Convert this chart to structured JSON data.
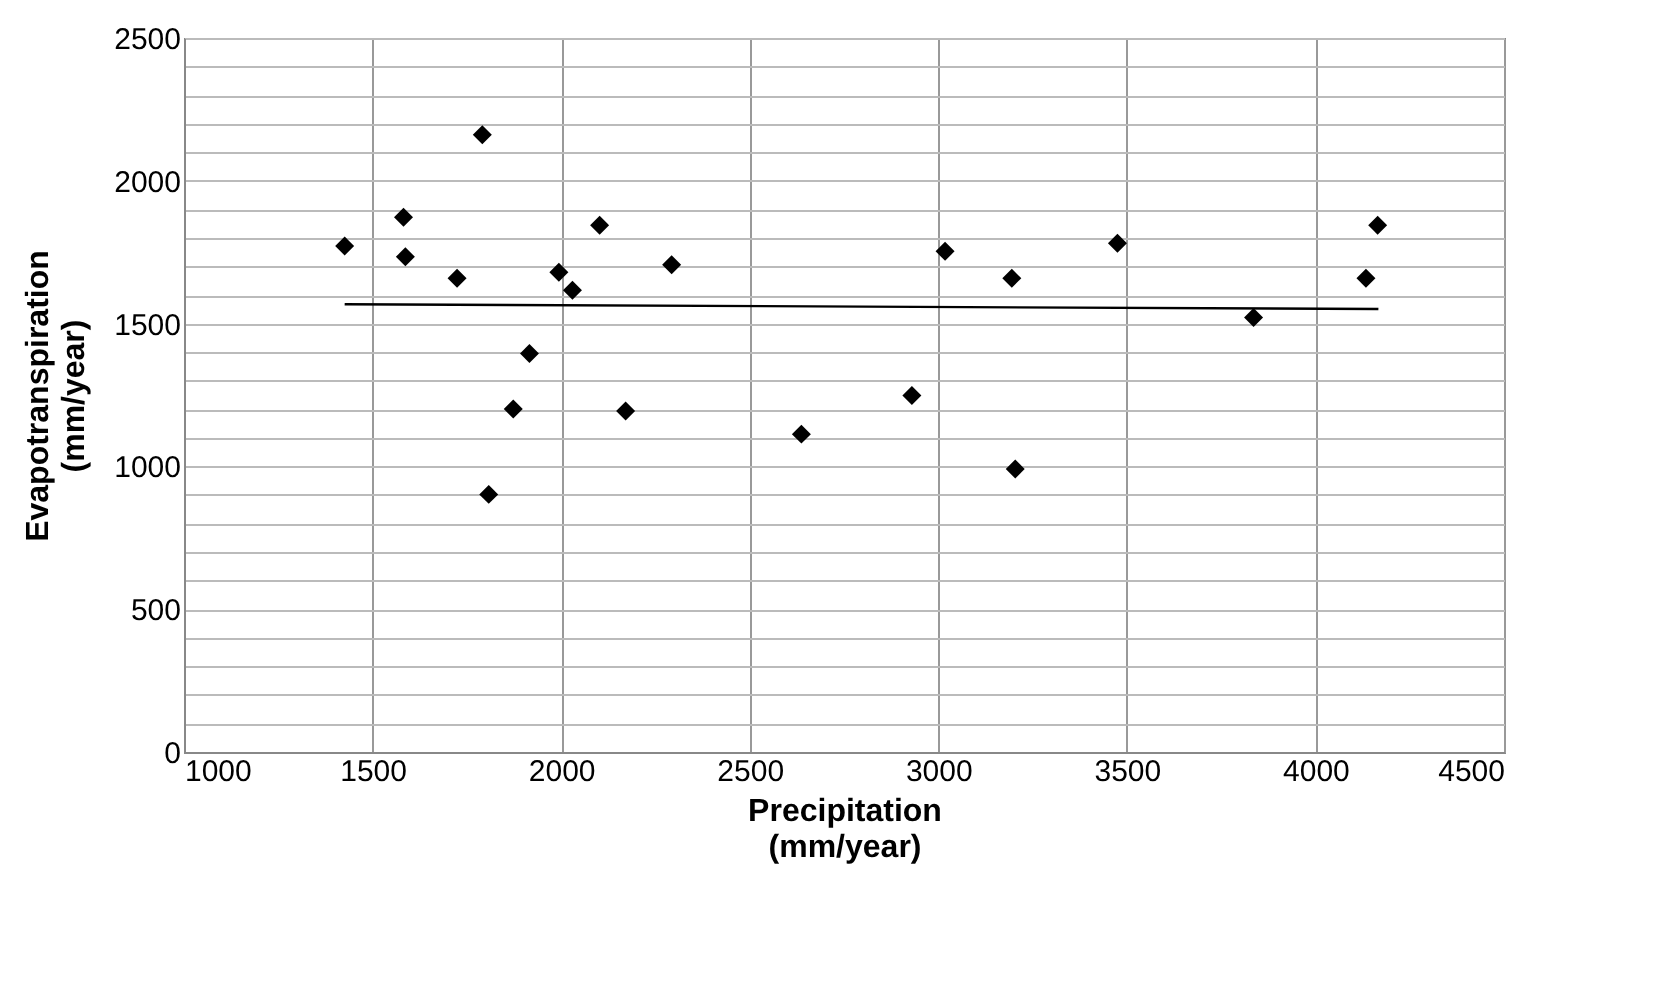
{
  "chart_data": {
    "type": "scatter",
    "xlabel": "Precipitation\n(mm/year)",
    "ylabel": "Evapotranspiration\n(mm/year)",
    "xlim": [
      1000,
      4500
    ],
    "xticks": [
      1000,
      1500,
      2000,
      2500,
      3000,
      3500,
      4000,
      4500
    ],
    "ylim": [
      0,
      2500
    ],
    "yticks": [
      0,
      {
        "value": 100,
        "label": null
      },
      {
        "value": 200,
        "label": null
      },
      {
        "value": 300,
        "label": null
      },
      {
        "value": 400,
        "label": null
      },
      500,
      {
        "value": 600,
        "label": null
      },
      {
        "value": 700,
        "label": null
      },
      {
        "value": 800,
        "label": null
      },
      {
        "value": 900,
        "label": null
      },
      1000,
      {
        "value": 1100,
        "label": null
      },
      {
        "value": 1200,
        "label": null
      },
      {
        "value": 1300,
        "label": null
      },
      {
        "value": 1400,
        "label": null
      },
      1500,
      {
        "value": 1600,
        "label": null
      },
      {
        "value": 1700,
        "label": null
      },
      {
        "value": 1800,
        "label": null
      },
      {
        "value": 1900,
        "label": null
      },
      2000,
      {
        "value": 2100,
        "label": null
      },
      {
        "value": 2200,
        "label": null
      },
      {
        "value": 2300,
        "label": null
      },
      {
        "value": 2400,
        "label": null
      },
      2500
    ],
    "grid": true,
    "legend": false,
    "series": [
      {
        "color": "#000000",
        "marker": "diamond",
        "x": [
          1426,
          1582,
          1587,
          1791,
          1724,
          1994,
          2030,
          2102,
          2293,
          1916,
          1873,
          2171,
          2637,
          1808,
          3018,
          3195,
          3475,
          3836,
          4134,
          4165,
          2930,
          3204
        ],
        "values": [
          1772,
          1872,
          1734,
          2161,
          1659,
          1680,
          1617,
          1844,
          1706,
          1395,
          1201,
          1194,
          1113,
          902,
          1753,
          1659,
          1781,
          1521,
          1659,
          1844,
          1248,
          991
        ]
      },
      {
        "type": "line",
        "color": "#000000",
        "marker": "none",
        "line_style": "solid",
        "x": [
          1426,
          4167
        ],
        "values": [
          1568,
          1551
        ]
      }
    ]
  }
}
